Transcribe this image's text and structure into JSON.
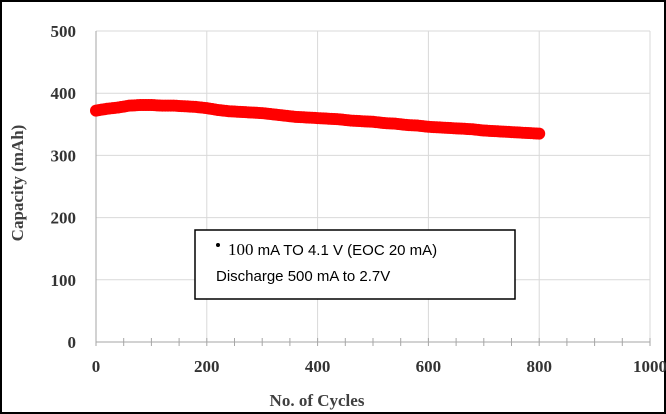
{
  "chart_data": {
    "type": "scatter",
    "title": "",
    "xlabel": "No. of Cycles",
    "ylabel": "Capacity (mAh)",
    "xlim": [
      0,
      1000
    ],
    "ylim": [
      0,
      500
    ],
    "x_ticks": [
      "0",
      "200",
      "400",
      "600",
      "800",
      "1000"
    ],
    "y_ticks": [
      "0",
      "100",
      "200",
      "300",
      "400",
      "500"
    ],
    "grid": true,
    "series": [
      {
        "name": "",
        "color": "#ff0000",
        "x": [
          0,
          20,
          40,
          60,
          80,
          100,
          120,
          140,
          160,
          180,
          200,
          220,
          240,
          260,
          280,
          300,
          320,
          340,
          360,
          380,
          400,
          420,
          440,
          460,
          480,
          500,
          520,
          540,
          560,
          580,
          600,
          620,
          640,
          660,
          680,
          700,
          720,
          740,
          760,
          780,
          800
        ],
        "y": [
          372,
          375,
          377,
          380,
          381,
          381,
          380,
          380,
          379,
          378,
          376,
          373,
          371,
          370,
          369,
          368,
          366,
          364,
          362,
          361,
          360,
          359,
          358,
          356,
          355,
          354,
          352,
          351,
          349,
          348,
          346,
          345,
          344,
          343,
          342,
          340,
          339,
          338,
          337,
          336,
          335
        ]
      }
    ],
    "annotation": {
      "line1_value": "100",
      "line1_text": " mA TO 4.1 V (EOC 20 mA)",
      "line2_text": "Discharge 500 mA to 2.7V"
    }
  }
}
